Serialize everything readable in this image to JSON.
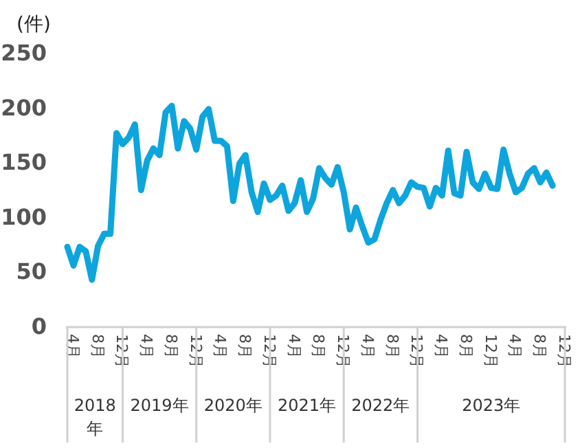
{
  "chart_data": {
    "type": "line",
    "ylabel": "(件)",
    "categories": [
      null,
      "4月",
      null,
      null,
      null,
      "8月",
      null,
      null,
      null,
      "12月",
      null,
      null,
      null,
      "4月",
      null,
      null,
      null,
      "8月",
      null,
      null,
      null,
      "12月",
      null,
      null,
      null,
      "4月",
      null,
      null,
      null,
      "8月",
      null,
      null,
      null,
      "12月",
      null,
      null,
      null,
      "4月",
      null,
      null,
      null,
      "8月",
      null,
      null,
      null,
      "12月",
      null,
      null,
      null,
      "4月",
      null,
      null,
      null,
      "8月",
      null,
      null,
      null,
      "12月",
      null,
      null,
      null,
      "4月",
      null,
      null,
      null,
      "8月",
      null,
      null,
      null,
      "12月",
      null,
      null,
      null,
      "4月",
      null,
      null,
      null,
      "8月",
      null,
      null,
      null,
      "12月"
    ],
    "series": [
      {
        "color": "#0ea5dd",
        "values": [
          72,
          55,
          72,
          68,
          42,
          73,
          84,
          84,
          176,
          166,
          172,
          184,
          124,
          151,
          162,
          156,
          195,
          201,
          162,
          187,
          180,
          161,
          191,
          198,
          169,
          169,
          164,
          114,
          148,
          156,
          122,
          104,
          130,
          115,
          119,
          128,
          105,
          112,
          133,
          104,
          116,
          144,
          135,
          129,
          145,
          122,
          88,
          108,
          91,
          76,
          79,
          97,
          112,
          124,
          112,
          119,
          131,
          127,
          126,
          109,
          126,
          119,
          160,
          121,
          119,
          159,
          131,
          125,
          139,
          126,
          125,
          161,
          139,
          122,
          126,
          139,
          144,
          131,
          140,
          128,
          null,
          null
        ]
      }
    ],
    "ylim": [
      0,
      250
    ],
    "yticks": [
      0,
      50,
      100,
      150,
      200,
      250
    ],
    "annotations": [
      "2018年",
      "2019年",
      "2020年",
      "2021年",
      "2022年",
      "2023年"
    ],
    "grid": false,
    "marker": "none",
    "line_style": "solid"
  }
}
